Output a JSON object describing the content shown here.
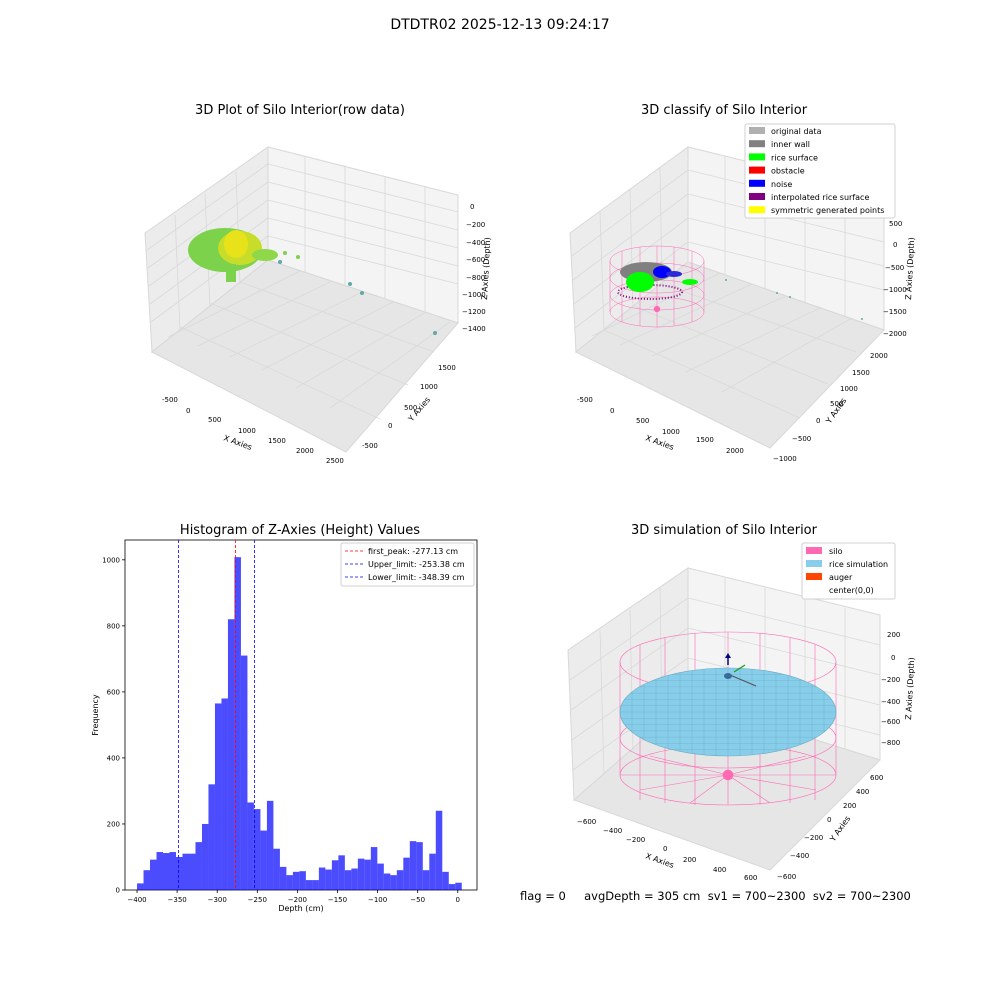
{
  "figure_title": "DTDTR02 2025-12-13 09:24:17",
  "status_text": "flag = 0     avgDepth = 305 cm  sv1 = 700~2300  sv2 = 700~2300",
  "chart_data": [
    {
      "type": "scatter3d",
      "title": "3D Plot of Silo Interior(row data)",
      "xlabel": "X Axies",
      "ylabel": "Y Axies",
      "zlabel": "Z Axies (Depth)",
      "x_ticks": [
        "-500",
        "0",
        "500",
        "1000",
        "1500",
        "2000",
        "2500"
      ],
      "y_ticks": [
        "-500",
        "0",
        "500",
        "1000",
        "1500"
      ],
      "z_ticks": [
        "0",
        "−200",
        "−400",
        "−600",
        "−800",
        "−1000",
        "−1200",
        "−1400"
      ],
      "colors": {
        "surface_yellow": "#e8e21a",
        "surface_green": "#7cd24a",
        "outlier": "#5fa9a9"
      }
    },
    {
      "type": "scatter3d",
      "title": "3D classify of Silo Interior",
      "xlabel": "X Axies",
      "ylabel": "Y Axies",
      "zlabel": "Z Axies (Depth)",
      "x_ticks": [
        "-500",
        "0",
        "500",
        "1000",
        "1500",
        "2000"
      ],
      "y_ticks": [
        "−1000",
        "−500",
        "0",
        "500",
        "1000",
        "1500",
        "2000"
      ],
      "z_ticks": [
        "500",
        "0",
        "−500",
        "−1000",
        "−1500",
        "−2000"
      ],
      "legend": [
        {
          "label": "original data",
          "color": "#b0b0b0"
        },
        {
          "label": "inner wall",
          "color": "#808080"
        },
        {
          "label": "rice surface",
          "color": "#00ff00"
        },
        {
          "label": "obstacle",
          "color": "#ff0000"
        },
        {
          "label": "noise",
          "color": "#0000ff"
        },
        {
          "label": "interpolated rice surface",
          "color": "#800080"
        },
        {
          "label": "symmetric generated points",
          "color": "#ffff00"
        }
      ]
    },
    {
      "type": "bar",
      "title": "Histogram of Z-Axies (Height) Values",
      "xlabel": "Depth (cm)",
      "ylabel": "Frequency",
      "xlim": [
        -415,
        24
      ],
      "ylim": [
        0,
        1060
      ],
      "x_ticks": [
        -400,
        -350,
        -300,
        -250,
        -200,
        -150,
        -100,
        -50,
        0
      ],
      "y_ticks": [
        0,
        200,
        400,
        600,
        800,
        1000
      ],
      "tick_labels_x": [
        "−400",
        "−350",
        "−300",
        "−250",
        "−200",
        "−150",
        "−100",
        "−50",
        "0"
      ],
      "tick_labels_y": [
        "0",
        "200",
        "400",
        "600",
        "800",
        "1000"
      ],
      "bin_start": -400,
      "bin_width": 8.1,
      "values": [
        20,
        60,
        92,
        115,
        112,
        115,
        100,
        110,
        110,
        145,
        200,
        320,
        565,
        580,
        820,
        1008,
        710,
        265,
        245,
        180,
        270,
        125,
        70,
        45,
        55,
        57,
        30,
        30,
        68,
        62,
        90,
        105,
        60,
        65,
        95,
        92,
        130,
        80,
        50,
        45,
        60,
        98,
        148,
        145,
        60,
        110,
        240,
        55,
        18,
        22
      ],
      "bar_color": "#0000ff",
      "lines": [
        {
          "label": "first_peak: -277.13 cm",
          "x": -277.13,
          "color": "#ff0000"
        },
        {
          "label": "Upper_limit: -253.38 cm",
          "x": -253.38,
          "color": "#0000ff"
        },
        {
          "label": "Lower_limit: -348.39 cm",
          "x": -348.39,
          "color": "#0000ff"
        }
      ]
    },
    {
      "type": "surface3d",
      "title": "3D simulation of Silo Interior",
      "xlabel": "X Axies",
      "ylabel": "Y Axies",
      "zlabel": "Z Axies (Depth)",
      "x_ticks": [
        "−600",
        "−400",
        "−200",
        "0",
        "200",
        "400",
        "600"
      ],
      "y_ticks": [
        "−600",
        "−400",
        "−200",
        "0",
        "200",
        "400",
        "600"
      ],
      "z_ticks": [
        "200",
        "0",
        "−200",
        "−400",
        "−600",
        "−800"
      ],
      "legend": [
        {
          "label": "silo",
          "color": "#ff69b4"
        },
        {
          "label": "rice simulation",
          "color": "#87ceeb"
        },
        {
          "label": "auger",
          "color": "#ff4500"
        },
        {
          "label": "center(0,0)",
          "color": ""
        }
      ]
    }
  ]
}
